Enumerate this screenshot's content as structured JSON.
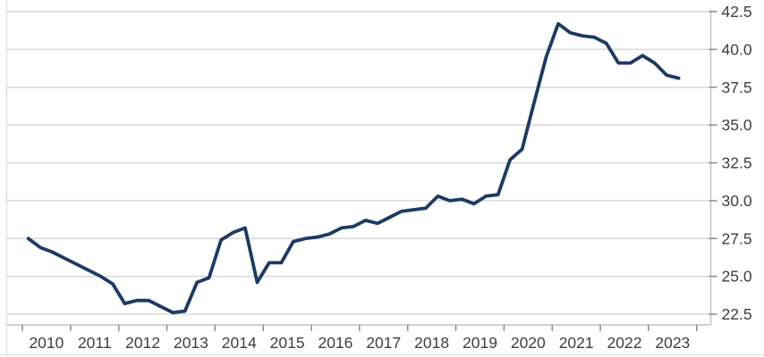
{
  "chart": {
    "colors": {
      "line": "#1d3a64",
      "grid": "#d9d9d9",
      "axis": "#c4c4c4",
      "tick": "#8a8a8a",
      "label": "#3c4043",
      "frame": "#e3e3e3",
      "background": "#ffffff"
    }
  },
  "chart_data": {
    "type": "line",
    "title": "",
    "xlabel": "",
    "ylabel": "",
    "legend": "none",
    "grid": "horizontal",
    "y_axis_side": "right",
    "frequency": "quarterly",
    "x_start": "2010 Q1",
    "x_end": "2023 Q3",
    "x_start_year": 2010,
    "points_per_year": 4,
    "x_tick_labels": [
      "2010",
      "2011",
      "2012",
      "2013",
      "2014",
      "2015",
      "2016",
      "2017",
      "2018",
      "2019",
      "2020",
      "2021",
      "2022",
      "2023"
    ],
    "y_tick_values": [
      22.5,
      25.0,
      27.5,
      30.0,
      32.5,
      35.0,
      37.5,
      40.0,
      42.5
    ],
    "ylim": [
      21.8,
      42.5
    ],
    "values": [
      27.5,
      26.9,
      26.6,
      26.2,
      25.8,
      25.4,
      25.0,
      24.5,
      23.2,
      23.4,
      23.4,
      23.0,
      22.6,
      22.7,
      24.6,
      24.9,
      27.4,
      27.9,
      28.2,
      24.6,
      25.9,
      25.9,
      27.3,
      27.5,
      27.6,
      27.8,
      28.2,
      28.3,
      28.7,
      28.5,
      28.9,
      29.3,
      29.4,
      29.5,
      30.3,
      30.0,
      30.1,
      29.8,
      30.3,
      30.4,
      32.7,
      33.4,
      36.5,
      39.5,
      41.7,
      41.1,
      40.9,
      40.8,
      40.4,
      39.1,
      39.1,
      39.6,
      39.1,
      38.3,
      38.1
    ]
  }
}
